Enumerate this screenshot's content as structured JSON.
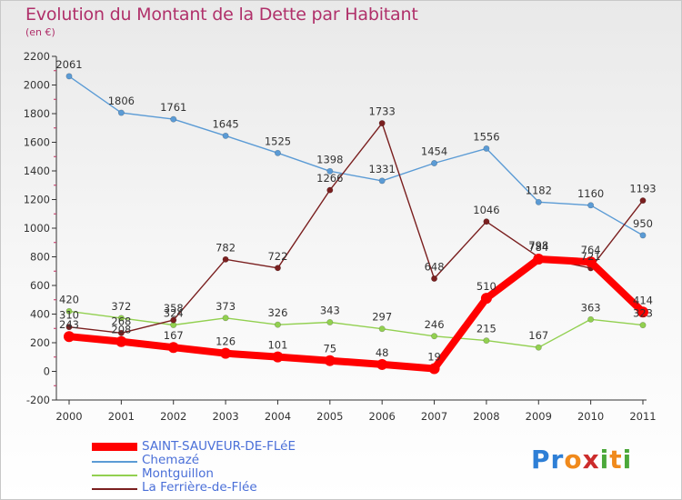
{
  "header": {
    "title": "Evolution du Montant de la Dette par Habitant",
    "subtitle": "(en €)"
  },
  "brand": {
    "letters": [
      "P",
      "r",
      "o",
      "x",
      "i",
      "t",
      "i"
    ]
  },
  "colors": {
    "title": "#b0306a",
    "brand": [
      "#2e7fd6",
      "#2e7fd6",
      "#f08a1c",
      "#cc2c2c",
      "#4ca83a",
      "#f08a1c",
      "#4ca83a"
    ]
  },
  "chart_data": {
    "type": "line",
    "x": [
      "2000",
      "2001",
      "2002",
      "2003",
      "2004",
      "2005",
      "2006",
      "2007",
      "2008",
      "2009",
      "2010",
      "2011"
    ],
    "ylim": [
      -200,
      2200
    ],
    "yticks": [
      "-200",
      "0",
      "200",
      "400",
      "600",
      "800",
      "1000",
      "1200",
      "1400",
      "1600",
      "1800",
      "2000",
      "2200"
    ],
    "grid": false,
    "legend_position": "bottom-left",
    "series": [
      {
        "name": "SAINT-SAUVEUR-DE-FLéE",
        "color": "#ff0000",
        "values": [
          243,
          208,
          167,
          126,
          101,
          75,
          48,
          19,
          510,
          784,
          764,
          414
        ],
        "labels": [
          "243",
          "208",
          "167",
          "126",
          "101",
          "75",
          "48",
          "19",
          "510",
          "784",
          "764",
          "414"
        ]
      },
      {
        "name": "Chemazé",
        "color": "#5b9bd5",
        "values": [
          2061,
          1806,
          1761,
          1645,
          1525,
          1398,
          1331,
          1454,
          1556,
          1182,
          1160,
          950
        ],
        "labels": [
          "2061",
          "1806",
          "1761",
          "1645",
          "1525",
          "1398",
          "1331",
          "1454",
          "1556",
          "1182",
          "1160",
          "950"
        ]
      },
      {
        "name": "Montguillon",
        "color": "#92d050",
        "values": [
          420,
          372,
          324,
          373,
          326,
          343,
          297,
          246,
          215,
          167,
          363,
          323
        ],
        "labels": [
          "420",
          "372",
          "324",
          "373",
          "326",
          "343",
          "297",
          "246",
          "215",
          "167",
          "363",
          "323"
        ]
      },
      {
        "name": "La Ferrière-de-Flée",
        "color": "#7a1f1f",
        "values": [
          310,
          268,
          358,
          782,
          722,
          1266,
          1733,
          648,
          1046,
          798,
          721,
          1193
        ],
        "labels": [
          "310",
          "268",
          "358",
          "782",
          "722",
          "1266",
          "1733",
          "648",
          "1046",
          "798",
          "721",
          "1193"
        ]
      }
    ]
  }
}
